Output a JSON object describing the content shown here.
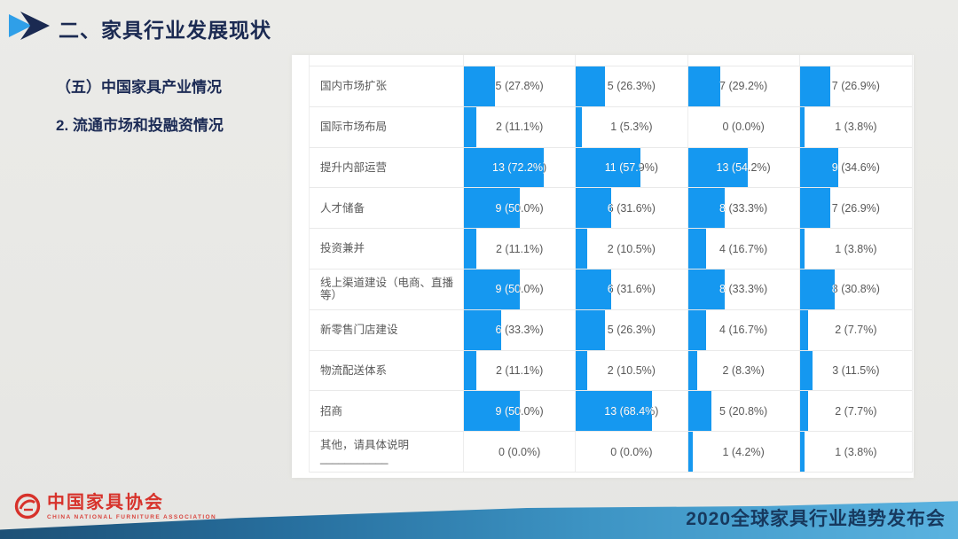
{
  "header": {
    "title": "二、家具行业发展现状"
  },
  "sidebar": {
    "line1": "（五）中国家具产业情况",
    "line2": "2. 流通市场和投融资情况"
  },
  "footer": {
    "brand_name": "中国家具协会",
    "brand_subtext": "CHINA NATIONAL FURNITURE ASSOCIATION",
    "right_text": "2020全球家具行业趋势发布会"
  },
  "colors": {
    "background": "#e9e9e6",
    "bar_blue": "#1598f0",
    "navy_text": "#1c2b52",
    "table_text_gray": "#595959",
    "brand_red": "#d7322b",
    "band_gradient_left": "#1d5076",
    "band_gradient_right": "#5bb3e0"
  },
  "chart_data": {
    "type": "bar",
    "orientation": "horizontal",
    "title": "",
    "value_format": "count (percent%)",
    "bar_color": "#1598f0",
    "xlim_percent": [
      0,
      100
    ],
    "categories": [
      "国内市场扩张",
      "国际市场布局",
      "提升内部运营",
      "人才储备",
      "投资兼并",
      "线上渠道建设（电商、直播等）",
      "新零售门店建设",
      "物流配送体系",
      "招商",
      "其他，请具体说明___________"
    ],
    "series": [
      {
        "id": "column_1",
        "counts": [
          5,
          2,
          13,
          9,
          2,
          9,
          6,
          2,
          9,
          0
        ],
        "percents": [
          27.8,
          11.1,
          72.2,
          50.0,
          11.1,
          50.0,
          33.3,
          11.1,
          50.0,
          0.0
        ]
      },
      {
        "id": "column_2",
        "counts": [
          5,
          1,
          11,
          6,
          2,
          6,
          5,
          2,
          13,
          0
        ],
        "percents": [
          26.3,
          5.3,
          57.9,
          31.6,
          10.5,
          31.6,
          26.3,
          10.5,
          68.4,
          0.0
        ]
      },
      {
        "id": "column_3",
        "counts": [
          7,
          0,
          13,
          8,
          4,
          8,
          4,
          2,
          5,
          1
        ],
        "percents": [
          29.2,
          0.0,
          54.2,
          33.3,
          16.7,
          33.3,
          16.7,
          8.3,
          20.8,
          4.2
        ]
      },
      {
        "id": "column_4",
        "counts": [
          7,
          1,
          9,
          7,
          1,
          8,
          2,
          3,
          2,
          1
        ],
        "percents": [
          26.9,
          3.8,
          34.6,
          26.9,
          3.8,
          30.8,
          7.7,
          11.5,
          7.7,
          3.8
        ]
      }
    ]
  }
}
